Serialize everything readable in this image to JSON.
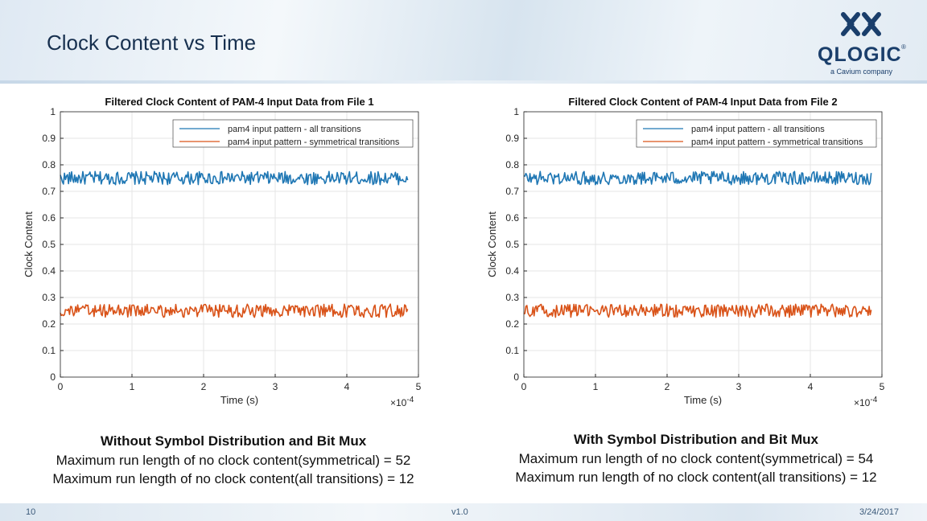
{
  "slide": {
    "title": "Clock Content vs Time",
    "logo": {
      "name": "QLOGIC",
      "registered": "®",
      "tagline": "a Cavium company"
    },
    "footer": {
      "page": "10",
      "version": "v1.0",
      "date": "3/24/2017"
    }
  },
  "captions": [
    {
      "heading": "Without Symbol Distribution and Bit Mux",
      "line1": "Maximum run length of no clock content(symmetrical) = 52",
      "line2": "Maximum run length of no clock content(all transitions) = 12"
    },
    {
      "heading": "With Symbol Distribution and Bit Mux",
      "line1": "Maximum run length of no clock content(symmetrical) = 54",
      "line2": "Maximum run length of no clock content(all transitions) = 12"
    }
  ],
  "colors": {
    "all_transitions": "#1f77b4",
    "symmetrical": "#d95319"
  },
  "chart_data": [
    {
      "type": "line",
      "title": "Filtered Clock Content of PAM-4 Input Data from File 1",
      "xlabel": "Time (s)",
      "ylabel": "Clock Content",
      "x_exponent": "×10",
      "x_exponent_power": "-4",
      "xlim": [
        0,
        5
      ],
      "ylim": [
        0,
        1
      ],
      "xticks": [
        "0",
        "1",
        "2",
        "3",
        "4",
        "5"
      ],
      "yticks": [
        "0",
        "0.1",
        "0.2",
        "0.3",
        "0.4",
        "0.5",
        "0.6",
        "0.7",
        "0.8",
        "0.9",
        "1"
      ],
      "grid": true,
      "legend_position": "top-right",
      "series": [
        {
          "name": "pam4 input pattern - all transitions",
          "x_range": [
            0,
            4.85
          ],
          "mean": 0.75,
          "spread": 0.025
        },
        {
          "name": "pam4 input pattern - symmetrical transitions",
          "x_range": [
            0,
            4.85
          ],
          "mean": 0.25,
          "spread": 0.025
        }
      ]
    },
    {
      "type": "line",
      "title": "Filtered Clock Content of PAM-4 Input Data from File 2",
      "xlabel": "Time (s)",
      "ylabel": "Clock Content",
      "x_exponent": "×10",
      "x_exponent_power": "-4",
      "xlim": [
        0,
        5
      ],
      "ylim": [
        0,
        1
      ],
      "xticks": [
        "0",
        "1",
        "2",
        "3",
        "4",
        "5"
      ],
      "yticks": [
        "0",
        "0.1",
        "0.2",
        "0.3",
        "0.4",
        "0.5",
        "0.6",
        "0.7",
        "0.8",
        "0.9",
        "1"
      ],
      "grid": true,
      "legend_position": "top-right",
      "series": [
        {
          "name": "pam4 input pattern - all transitions",
          "x_range": [
            0,
            4.85
          ],
          "mean": 0.75,
          "spread": 0.025
        },
        {
          "name": "pam4 input pattern - symmetrical transitions",
          "x_range": [
            0,
            4.85
          ],
          "mean": 0.25,
          "spread": 0.025
        }
      ]
    }
  ]
}
